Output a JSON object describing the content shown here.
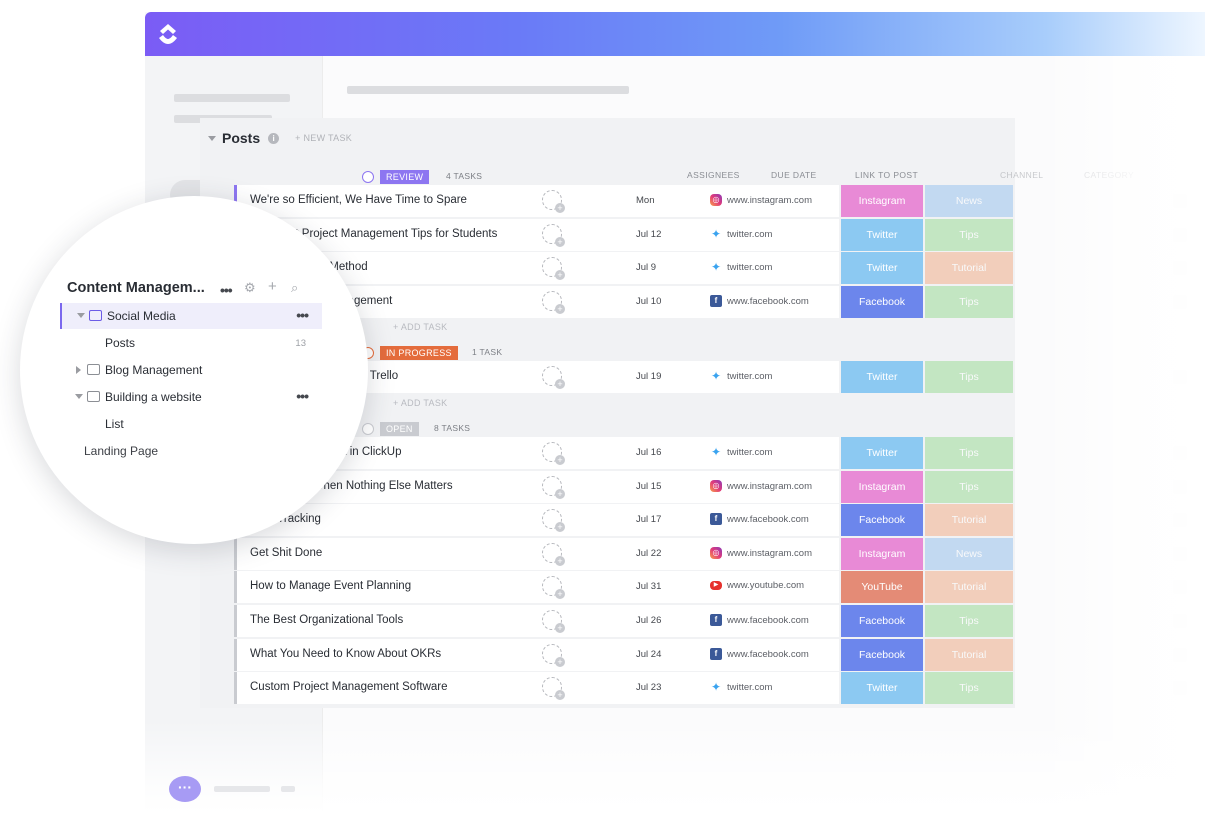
{
  "list": {
    "title": "Posts",
    "new_task": "+ NEW TASK",
    "add_task": "+ ADD TASK"
  },
  "columns": {
    "assignees": "ASSIGNEES",
    "due_date": "DUE DATE",
    "link": "LINK TO POST",
    "channel": "CHANNEL",
    "category": "CATEGORY"
  },
  "colors": {
    "review": "#8d76f1",
    "in_progress": "#e46c3c",
    "open": "#c9cbd0",
    "instagram": "#e88ad6",
    "twitter": "#8cc9f2",
    "facebook": "#6c86ec",
    "youtube": "#e48b76",
    "news": "#9cc5f0",
    "tips": "#9edd9a",
    "tutorial": "#f3b28e"
  },
  "groups": [
    {
      "status": "REVIEW",
      "count": "4 TASKS",
      "tasks": [
        {
          "name": "We're so Efficient, We Have Time to Spare",
          "due": "Mon",
          "link": "www.instagram.com",
          "icon": "instagram",
          "channel": "Instagram",
          "category": "News"
        },
        {
          "name": "Important Project Management Tips for Students",
          "due": "Jul 12",
          "link": "twitter.com",
          "icon": "twitter",
          "channel": "Twitter",
          "category": "Tips"
        },
        {
          "name": "Using the GTD Method",
          "due": "Jul 9",
          "link": "twitter.com",
          "icon": "twitter",
          "channel": "Twitter",
          "category": "Tutorial"
        },
        {
          "name": "Personal Task Management",
          "due": "Jul 10",
          "link": "www.facebook.com",
          "icon": "facebook",
          "channel": "Facebook",
          "category": "Tips"
        }
      ]
    },
    {
      "status": "IN PROGRESS",
      "count": "1 TASK",
      "tasks": [
        {
          "name": "The Top Alternatives to Trello",
          "due": "Jul 19",
          "link": "twitter.com",
          "icon": "twitter",
          "channel": "Twitter",
          "category": "Tips"
        }
      ]
    },
    {
      "status": "OPEN",
      "count": "8 TASKS",
      "tasks": [
        {
          "name": "Agile Development in ClickUp",
          "due": "Jul 16",
          "link": "twitter.com",
          "icon": "twitter",
          "channel": "Twitter",
          "category": "Tips"
        },
        {
          "name": "Creativity is When Nothing Else Matters",
          "due": "Jul 15",
          "link": "www.instagram.com",
          "icon": "instagram",
          "channel": "Instagram",
          "category": "Tips"
        },
        {
          "name": "Goal Tracking",
          "due": "Jul 17",
          "link": "www.facebook.com",
          "icon": "facebook",
          "channel": "Facebook",
          "category": "Tutorial"
        },
        {
          "name": "Get Shit Done",
          "due": "Jul 22",
          "link": "www.instagram.com",
          "icon": "instagram",
          "channel": "Instagram",
          "category": "News"
        },
        {
          "name": "How to Manage Event Planning",
          "due": "Jul 31",
          "link": "www.youtube.com",
          "icon": "youtube",
          "channel": "YouTube",
          "category": "Tutorial"
        },
        {
          "name": "The Best Organizational Tools",
          "due": "Jul 26",
          "link": "www.facebook.com",
          "icon": "facebook",
          "channel": "Facebook",
          "category": "Tips"
        },
        {
          "name": "What You Need to Know About OKRs",
          "due": "Jul 24",
          "link": "www.facebook.com",
          "icon": "facebook",
          "channel": "Facebook",
          "category": "Tutorial"
        },
        {
          "name": "Custom Project Management Software",
          "due": "Jul 23",
          "link": "twitter.com",
          "icon": "twitter",
          "channel": "Twitter",
          "category": "Tips"
        }
      ]
    }
  ],
  "sidebar": {
    "space_title": "Content Managem...",
    "folders": [
      {
        "label": "Social Media"
      },
      {
        "label": "Posts",
        "count": "13"
      },
      {
        "label": "Blog Management"
      },
      {
        "label": "Building a website"
      },
      {
        "label": "List"
      },
      {
        "label": "Landing Page"
      }
    ]
  }
}
